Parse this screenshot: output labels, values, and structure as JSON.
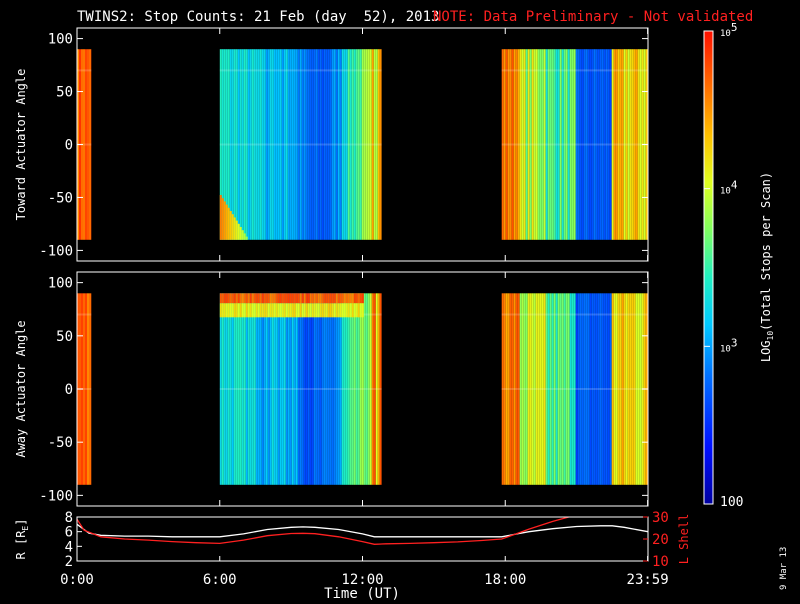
{
  "header": {
    "title": "TWINS2: Stop Counts: 21 Feb (day  52), 2013",
    "note": "NOTE: Data Preliminary - Not validated",
    "note_color": "#ff2020"
  },
  "date_stamp": "9 Mar 13",
  "colorbar": {
    "label": "LOG10(Total Stops per Scan)",
    "label_parts": {
      "pre": "LOG",
      "sub": "10",
      "post": "(Total Stops per Scan)"
    },
    "ticks": [
      {
        "value": 100,
        "text": "100",
        "kind": "plain"
      },
      {
        "value": 1000,
        "base": "10",
        "exp": "3",
        "kind": "power"
      },
      {
        "value": 10000,
        "base": "10",
        "exp": "4",
        "kind": "power"
      },
      {
        "value": 100000,
        "base": "10",
        "exp": "5",
        "kind": "power"
      }
    ],
    "range": [
      100,
      100000
    ],
    "scale": "log"
  },
  "xaxis": {
    "label": "Time (UT)",
    "range": [
      0,
      24
    ],
    "ticks": [
      {
        "value": 0,
        "text": "0:00"
      },
      {
        "value": 6,
        "text": "6:00"
      },
      {
        "value": 12,
        "text": "12:00"
      },
      {
        "value": 18,
        "text": "18:00"
      },
      {
        "value": 23.983,
        "text": "23:59"
      }
    ]
  },
  "chart_data": [
    {
      "type": "heatmap",
      "id": "toward",
      "ylabel": "Toward Actuator Angle",
      "ylim": [
        -110,
        110
      ],
      "yticks": [
        100,
        50,
        0,
        -50,
        -100
      ],
      "x_unit": "hours UT",
      "y_extent": [
        -90,
        90
      ],
      "data_segments": [
        {
          "start": 0.0,
          "end": 0.6,
          "level": 4.7,
          "pattern": "edge"
        },
        {
          "start": 6.0,
          "end": 12.8,
          "level": 3.25,
          "pattern": "middle",
          "edge_feature": "low-angle-bright"
        },
        {
          "start": 17.85,
          "end": 24.0,
          "level": 3.3,
          "pattern": "late"
        }
      ]
    },
    {
      "type": "heatmap",
      "id": "away",
      "ylabel": "Away Actuator Angle",
      "ylim": [
        -110,
        110
      ],
      "yticks": [
        100,
        50,
        0,
        -50,
        -100
      ],
      "x_unit": "hours UT",
      "y_extent": [
        -90,
        90
      ],
      "data_segments": [
        {
          "start": 0.0,
          "end": 0.6,
          "level": 4.7,
          "pattern": "edge"
        },
        {
          "start": 6.0,
          "end": 12.8,
          "level": 3.25,
          "pattern": "middle",
          "edge_feature": "high-angle-bright"
        },
        {
          "start": 17.85,
          "end": 24.0,
          "level": 3.3,
          "pattern": "late"
        }
      ]
    },
    {
      "type": "line",
      "id": "orbit",
      "ylabel_left": {
        "pre": "R [R",
        "sub": "E",
        "post": "]"
      },
      "ylabel_right": "L Shell",
      "ylim_left": [
        2,
        8
      ],
      "yticks_left": [
        8,
        6,
        4,
        2
      ],
      "ylim_right": [
        10,
        30
      ],
      "yticks_right": [
        30,
        20,
        10
      ],
      "series": [
        {
          "axis": "left",
          "color": "#ffffff",
          "x": [
            0,
            0.5,
            1,
            2,
            3,
            4,
            5,
            6,
            7,
            8,
            9,
            9.5,
            10,
            11,
            12,
            12.5,
            13,
            14,
            15,
            16,
            17,
            17.85,
            18.5,
            19,
            20,
            21,
            22,
            22.5,
            23,
            24
          ],
          "y": [
            7.0,
            5.8,
            5.5,
            5.4,
            5.4,
            5.3,
            5.3,
            5.3,
            5.7,
            6.3,
            6.6,
            6.65,
            6.6,
            6.3,
            5.7,
            5.3,
            5.3,
            5.3,
            5.3,
            5.3,
            5.3,
            5.3,
            5.7,
            6.0,
            6.4,
            6.7,
            6.8,
            6.8,
            6.6,
            6.0
          ]
        },
        {
          "axis": "right",
          "color": "#ff2020",
          "x": [
            0,
            0.3,
            1,
            2,
            3,
            4,
            5,
            6,
            7,
            8,
            9,
            9.5,
            10,
            11,
            12,
            12.5,
            13,
            14,
            15,
            16,
            17,
            17.85,
            18.5,
            19,
            20,
            21
          ],
          "y": [
            29,
            24,
            21,
            20,
            19.5,
            18.8,
            18.3,
            18.0,
            19.5,
            21.5,
            22.5,
            22.6,
            22.4,
            21.0,
            18.8,
            17.6,
            17.8,
            18.0,
            18.3,
            18.7,
            19.3,
            20.0,
            22.5,
            24.5,
            28.0,
            31.0
          ]
        }
      ]
    }
  ]
}
